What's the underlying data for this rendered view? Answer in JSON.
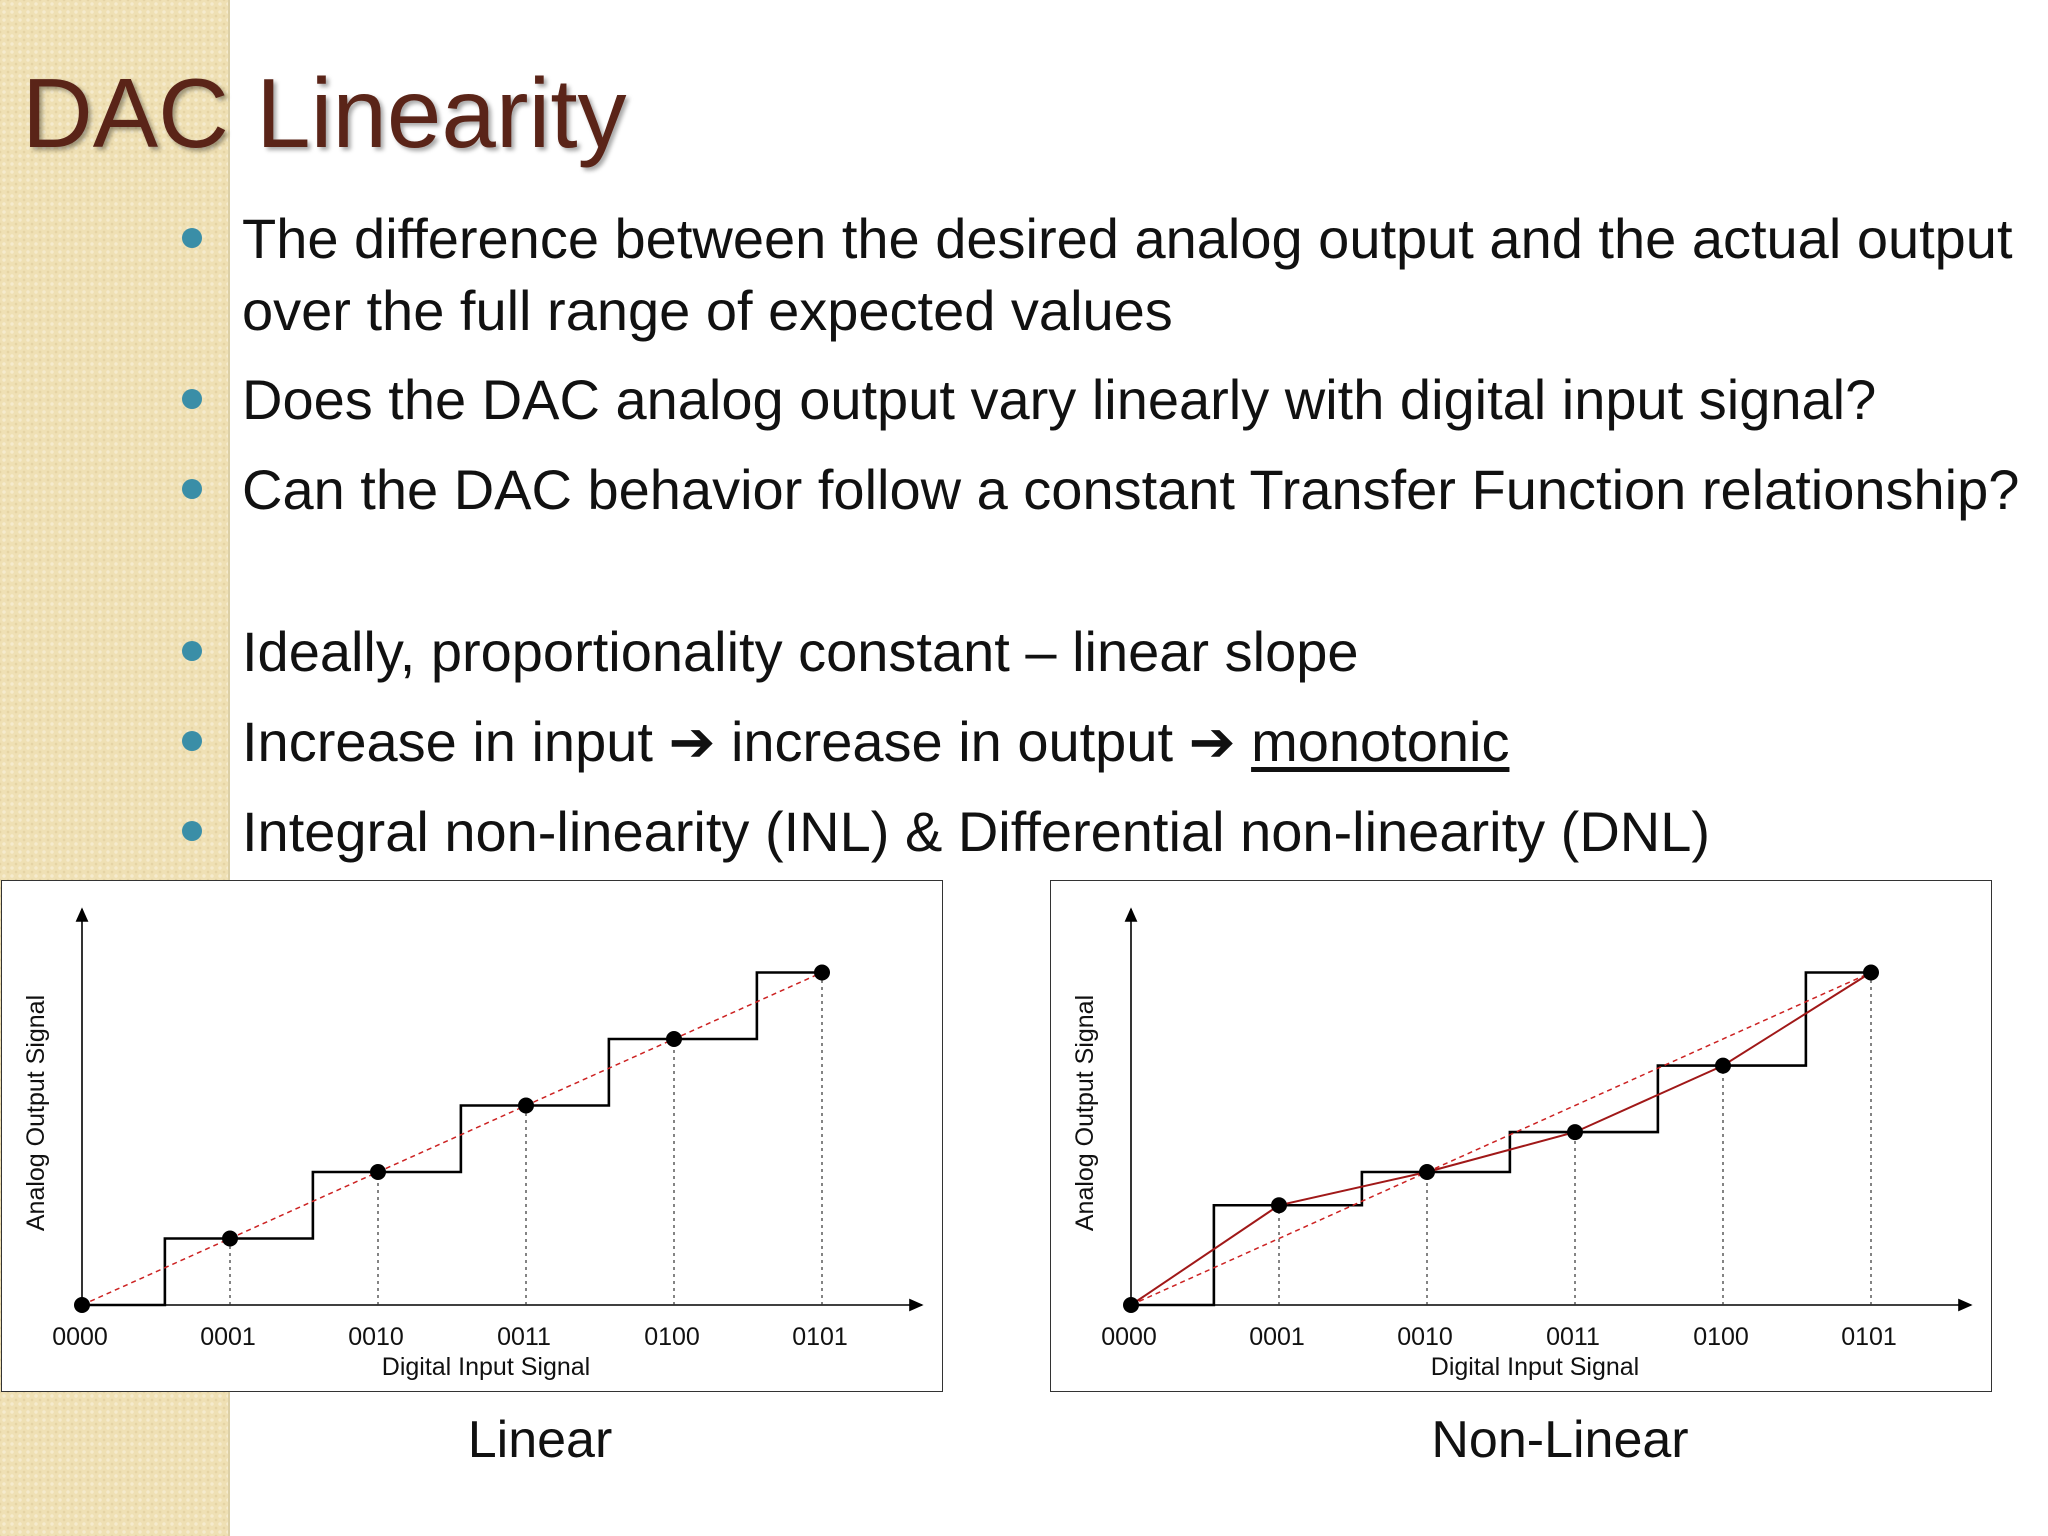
{
  "slide": {
    "title": "DAC Linearity",
    "bullets": [
      {
        "text": "The difference between the desired analog output and the actual output over the full range of expected values"
      },
      {
        "text": "Does the DAC analog output vary linearly with digital input signal?"
      },
      {
        "text": "Can the DAC behavior follow a constant Transfer Function relationship?"
      },
      {
        "text": "Ideally, proportionality constant – linear slope"
      },
      {
        "pre": "Increase in input ",
        "arrow": "➔",
        "mid": " increase in output ",
        "em": "monotonic"
      },
      {
        "text": "Integral non-linearity (INL) & Differential non-linearity (DNL)"
      }
    ]
  },
  "colors": {
    "title": "#5a2418",
    "bullet_dot": "#3a8ea7",
    "sidebar": "#efe0b4",
    "ideal_line": "#cc2222",
    "actual_line": "#a01818",
    "staircase": "#000000"
  },
  "chart_data": [
    {
      "type": "line",
      "caption": "Linear",
      "xlabel": "Digital Input Signal",
      "ylabel": "Analog Output Signal",
      "categories": [
        "0000",
        "0001",
        "0010",
        "0011",
        "0100",
        "0101"
      ],
      "ylim": [
        0,
        5.5
      ],
      "series": [
        {
          "style": "dashed-ideal",
          "values": [
            0,
            1,
            2,
            3,
            4,
            5
          ]
        },
        {
          "style": "staircase-points",
          "values": [
            0,
            1,
            2,
            3,
            4,
            5
          ]
        }
      ],
      "staircase": {
        "levels": [
          0,
          1,
          2,
          3,
          4,
          5
        ]
      },
      "grid": false,
      "vertical_dashed_guides": true
    },
    {
      "type": "line",
      "caption": "Non-Linear",
      "xlabel": "Digital Input Signal",
      "ylabel": "Analog Output Signal",
      "categories": [
        "0000",
        "0001",
        "0010",
        "0011",
        "0100",
        "0101"
      ],
      "ylim": [
        0,
        5.5
      ],
      "series": [
        {
          "style": "dashed-ideal",
          "values": [
            0,
            1,
            2,
            3,
            4,
            5
          ]
        },
        {
          "style": "solid-actual",
          "values": [
            0,
            1.5,
            2.0,
            2.6,
            3.6,
            5.0
          ]
        }
      ],
      "staircase": {
        "levels": [
          0,
          1.5,
          2.0,
          2.6,
          3.6,
          5.0
        ]
      },
      "grid": false,
      "vertical_dashed_guides": true
    }
  ]
}
